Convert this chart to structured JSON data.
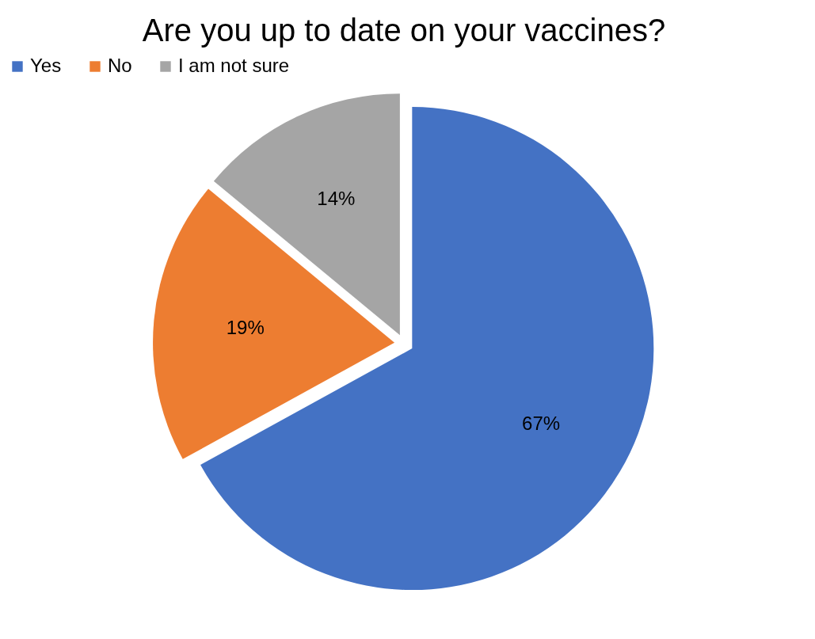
{
  "chart_data": {
    "type": "pie",
    "title": "Are you up to date on your vaccines?",
    "categories": [
      "Yes",
      "No",
      "I am not sure"
    ],
    "values": [
      67,
      19,
      14
    ],
    "colors": [
      "#4472c4",
      "#ed7d31",
      "#a5a5a5"
    ],
    "value_labels": [
      "67%",
      "19%",
      "14%"
    ],
    "legend": "top"
  }
}
